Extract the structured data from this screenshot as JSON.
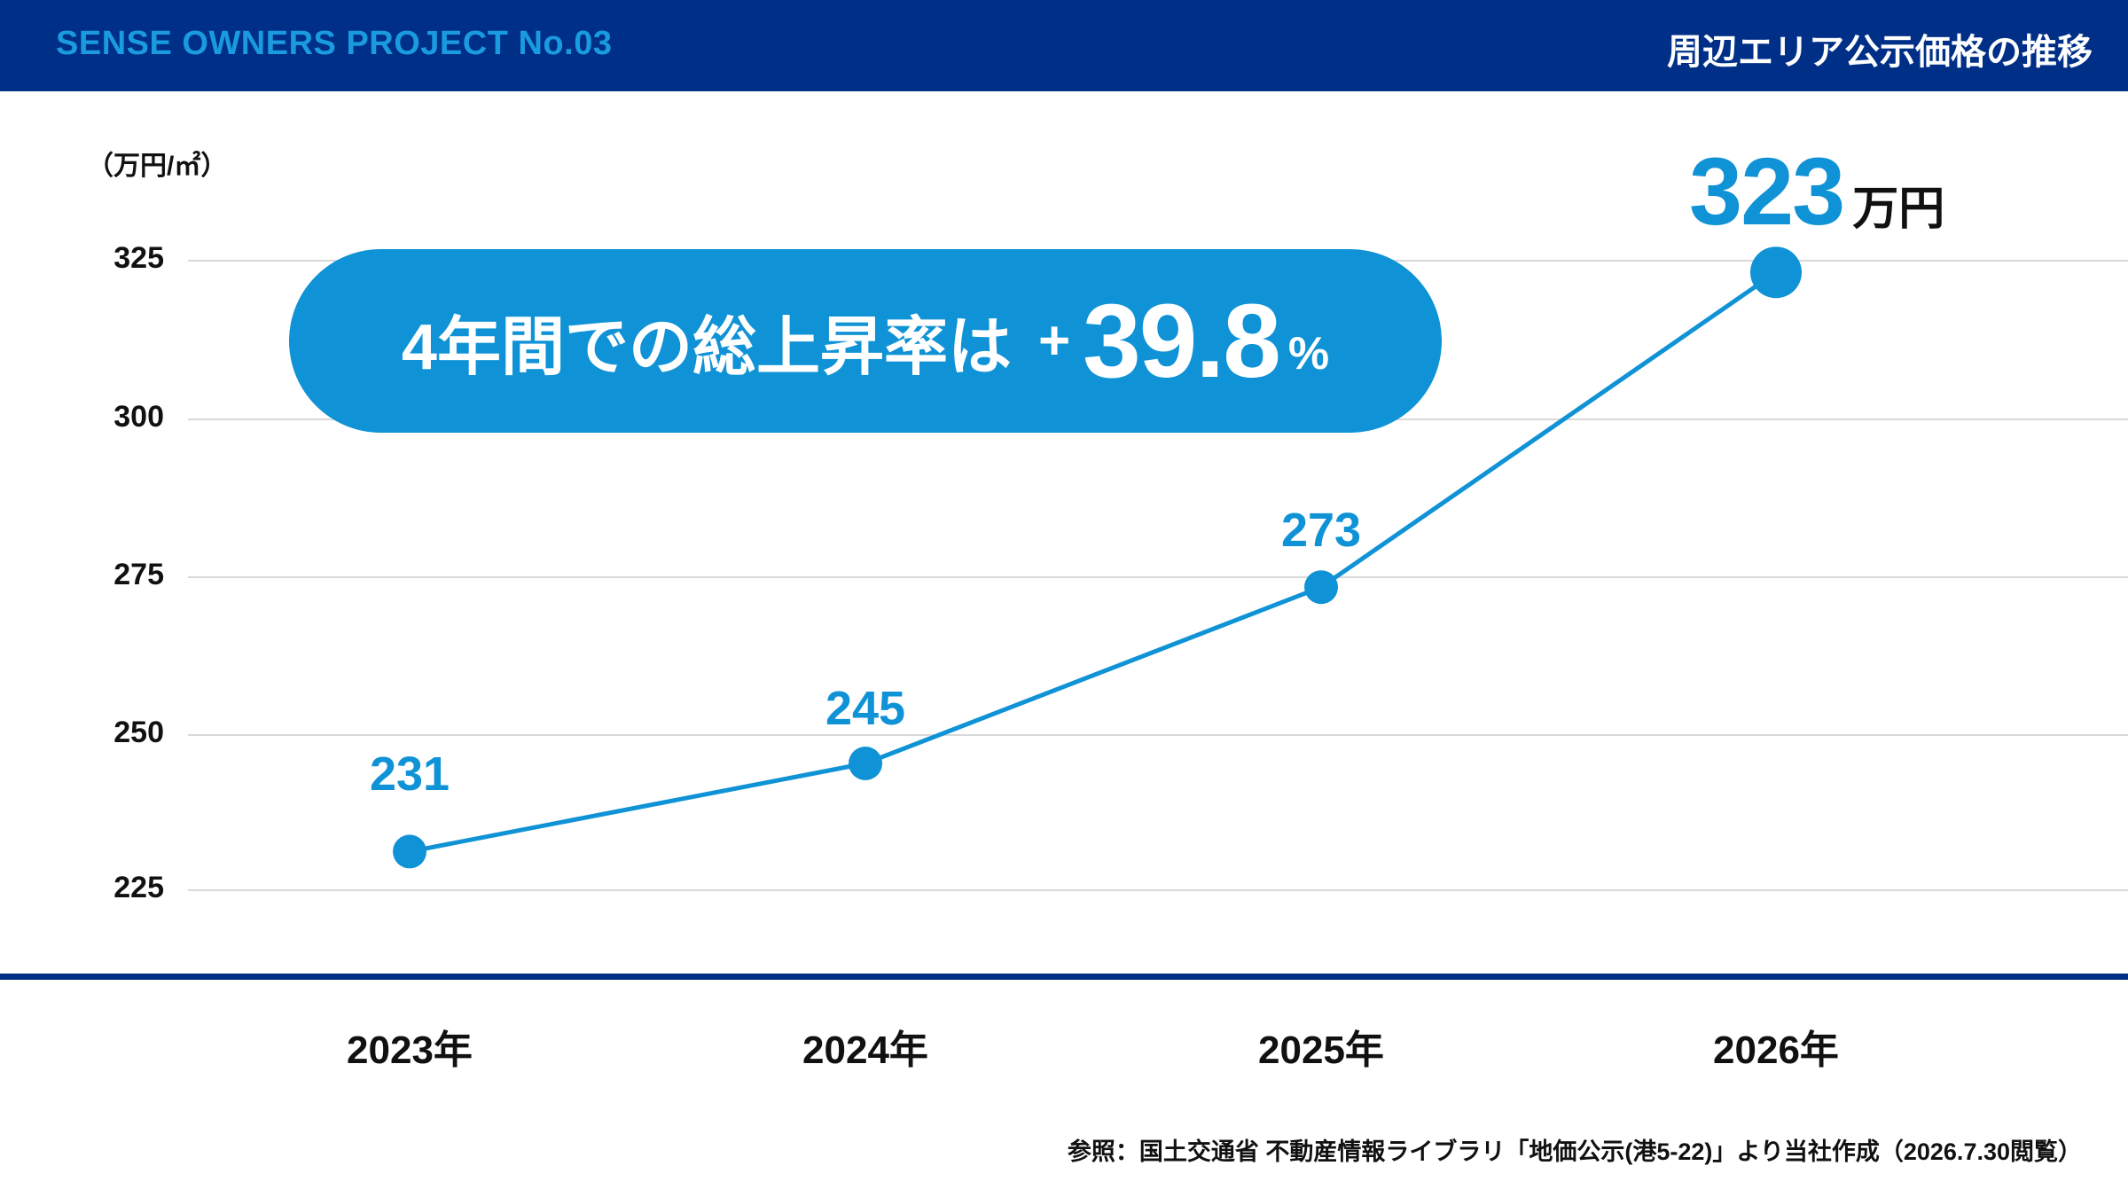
{
  "header": {
    "project_title": "SENSE OWNERS PROJECT No.03",
    "page_heading": "周辺エリア公示価格の推移"
  },
  "highlight": {
    "text": "4年間での総上昇率は",
    "plus": "+",
    "value": "39.8",
    "suffix": "%"
  },
  "last_value": {
    "value": "323",
    "unit": "万円"
  },
  "source_note": "参照：国土交通省 不動産情報ライブラリ「地価公示(港5-22)」より当社作成（2026.7.30閲覧）",
  "colors": {
    "header_bg": "#002f87",
    "accent": "#0f93d6",
    "gridline": "#d9d9d9"
  },
  "chart_data": {
    "type": "line",
    "categories": [
      "2023年",
      "2024年",
      "2025年",
      "2026年"
    ],
    "values": [
      231,
      245,
      273,
      323
    ],
    "data_labels": [
      "231",
      "245",
      "273",
      ""
    ],
    "ylabel": "（万円/㎡）",
    "yticks": [
      "325",
      "300",
      "275",
      "250",
      "225"
    ],
    "ytick_values": [
      325,
      300,
      275,
      250,
      225
    ],
    "ylim": [
      225,
      325
    ],
    "grid": true,
    "legend": "none"
  }
}
